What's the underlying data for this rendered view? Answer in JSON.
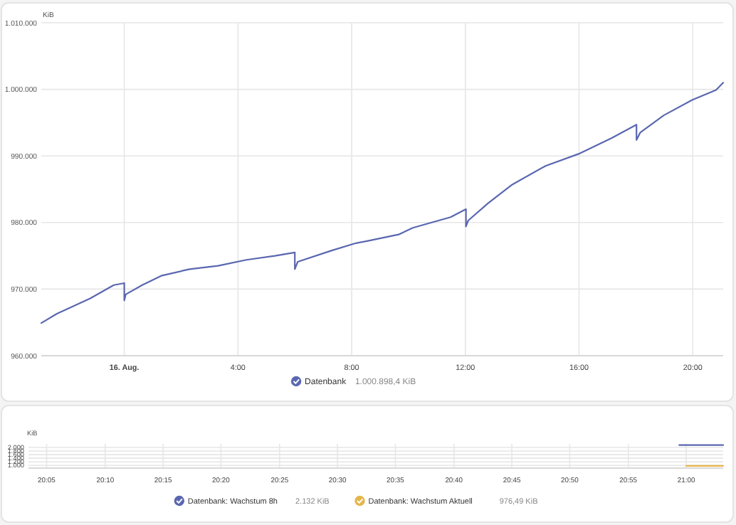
{
  "chart_data": [
    {
      "type": "line",
      "ylabel": "KiB",
      "xlim": [
        -2.92,
        21.07
      ],
      "ylim": [
        960000,
        1010000
      ],
      "xticks": [
        {
          "value": 0,
          "label": "16. Aug."
        },
        {
          "value": 4,
          "label": "4:00"
        },
        {
          "value": 8,
          "label": "8:00"
        },
        {
          "value": 12,
          "label": "12:00"
        },
        {
          "value": 16,
          "label": "16:00"
        },
        {
          "value": 20,
          "label": "20:00"
        }
      ],
      "yticks": [
        {
          "value": 960000,
          "label": "960.000"
        },
        {
          "value": 970000,
          "label": "970.000"
        },
        {
          "value": 980000,
          "label": "980.000"
        },
        {
          "value": 990000,
          "label": "990.000"
        },
        {
          "value": 1000000,
          "label": "1.000.000"
        },
        {
          "value": 1010000,
          "label": "1.010.000"
        }
      ],
      "grid": true,
      "legend": "bottom",
      "marker": "none",
      "line_style": "solid",
      "annotations": [
        "1.000.898,4 KiB"
      ],
      "series": [
        {
          "name": "Datenbank",
          "color": "#5a67b0",
          "x": [
            -2.92,
            -2.37,
            -1.2,
            -0.37,
            0,
            0,
            0.05,
            0.63,
            1.3,
            2.3,
            3.3,
            4.3,
            5.3,
            6.0,
            6.0,
            6.1,
            7.3,
            8.15,
            8.63,
            9.65,
            10.15,
            11.48,
            12.02,
            12.02,
            12.1,
            12.8,
            13.65,
            14.82,
            15.98,
            17.15,
            18.02,
            18.02,
            18.15,
            18.98,
            19.98,
            20.82,
            21.07
          ],
          "values": [
            964900,
            966300,
            968600,
            970600,
            970900,
            968300,
            969200,
            970600,
            972000,
            973000,
            973500,
            974400,
            975000,
            975500,
            973000,
            974100,
            975800,
            976900,
            977300,
            978200,
            979200,
            980800,
            982000,
            979400,
            980300,
            982900,
            985700,
            988500,
            990300,
            992700,
            994700,
            992400,
            993500,
            996100,
            998400,
            999900,
            1001000
          ]
        }
      ]
    },
    {
      "type": "line",
      "ylabel": "KiB",
      "xlim": [
        20.057,
        21.053
      ],
      "ylim": [
        850,
        2200
      ],
      "xticks": [
        {
          "value": 20.083,
          "label": "20:05"
        },
        {
          "value": 20.167,
          "label": "20:10"
        },
        {
          "value": 20.25,
          "label": "20:15"
        },
        {
          "value": 20.333,
          "label": "20:20"
        },
        {
          "value": 20.417,
          "label": "20:25"
        },
        {
          "value": 20.5,
          "label": "20:30"
        },
        {
          "value": 20.583,
          "label": "20:35"
        },
        {
          "value": 20.667,
          "label": "20:40"
        },
        {
          "value": 20.75,
          "label": "20:45"
        },
        {
          "value": 20.833,
          "label": "20:50"
        },
        {
          "value": 20.917,
          "label": "20:55"
        },
        {
          "value": 21,
          "label": "21:00"
        }
      ],
      "yticks": [
        {
          "value": 1000,
          "label": "1.000"
        },
        {
          "value": 1200,
          "label": "1.200"
        },
        {
          "value": 1400,
          "label": "1.400"
        },
        {
          "value": 1600,
          "label": "1.600"
        },
        {
          "value": 1800,
          "label": "1.800"
        },
        {
          "value": 2000,
          "label": "2.000"
        }
      ],
      "grid": true,
      "legend": "bottom",
      "marker": "none",
      "line_style": "solid",
      "annotations": [
        "2.132 KiB",
        "976,49 KiB"
      ],
      "series": [
        {
          "name": "Datenbank: Wachstum 8h",
          "color": "#5a67b0",
          "x": [
            20.99,
            21.053
          ],
          "values": [
            2132,
            2132
          ]
        },
        {
          "name": "Datenbank: Wachstum Aktuell",
          "color": "#e6b54a",
          "x": [
            21.0,
            21.053
          ],
          "values": [
            976.49,
            976.49
          ]
        }
      ]
    }
  ]
}
